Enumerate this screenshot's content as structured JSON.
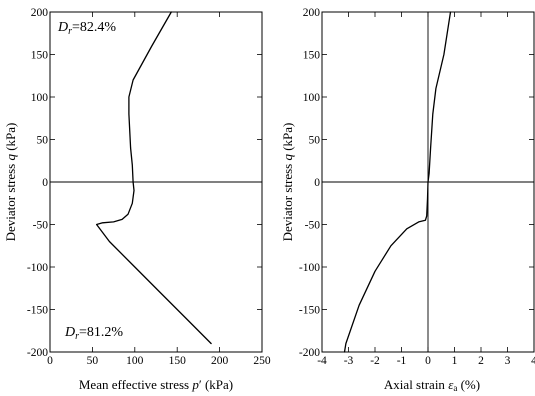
{
  "chart_data": [
    {
      "type": "line",
      "xlabel_parts": [
        "Mean effective stress ",
        "p",
        "′ (kPa)"
      ],
      "ylabel_parts": [
        "Deviator stress ",
        "q",
        " (kPa)"
      ],
      "xlim": [
        0,
        250
      ],
      "ylim": [
        -200,
        200
      ],
      "xticks": [
        0,
        50,
        100,
        150,
        200,
        250
      ],
      "yticks": [
        -200,
        -150,
        -100,
        -50,
        0,
        50,
        100,
        150,
        200
      ],
      "annotations": [
        {
          "text_parts": [
            "D",
            "r",
            "=82.4%"
          ],
          "position": "top-left"
        },
        {
          "text_parts": [
            "D",
            "r",
            "=81.2%"
          ],
          "position": "bottom-left"
        }
      ],
      "hline": 0,
      "series": [
        {
          "x": [
            143,
            120,
            98,
            93,
            93,
            95,
            97,
            98,
            99,
            97,
            92,
            85,
            75,
            62,
            55,
            70,
            100,
            130,
            160,
            190
          ],
          "y": [
            200,
            160,
            120,
            100,
            80,
            40,
            20,
            0,
            -10,
            -25,
            -38,
            -44,
            -47,
            -48,
            -50,
            -70,
            -100,
            -130,
            -160,
            -190
          ]
        }
      ]
    },
    {
      "type": "line",
      "xlabel_parts": [
        "Axial strain ",
        "ε",
        "a",
        " (%)"
      ],
      "ylabel_parts": [
        "Deviator stress ",
        "q",
        " (kPa)"
      ],
      "xlim": [
        -4,
        4
      ],
      "ylim": [
        -200,
        200
      ],
      "xticks": [
        -4,
        -3,
        -2,
        -1,
        0,
        1,
        2,
        3,
        4
      ],
      "yticks": [
        -200,
        -150,
        -100,
        -50,
        0,
        50,
        100,
        150,
        200
      ],
      "hline": 0,
      "vline": 0,
      "series": [
        {
          "x": [
            0.85,
            0.6,
            0.3,
            0.18,
            0.1,
            0.04,
            0.0,
            -0.02,
            -0.05,
            -0.1,
            -0.35,
            -0.8,
            -1.4,
            -2.0,
            -2.6,
            -3.1,
            -3.15
          ],
          "y": [
            200,
            150,
            110,
            80,
            40,
            10,
            0,
            -20,
            -40,
            -45,
            -47,
            -55,
            -75,
            -105,
            -145,
            -190,
            -200
          ]
        }
      ]
    }
  ]
}
